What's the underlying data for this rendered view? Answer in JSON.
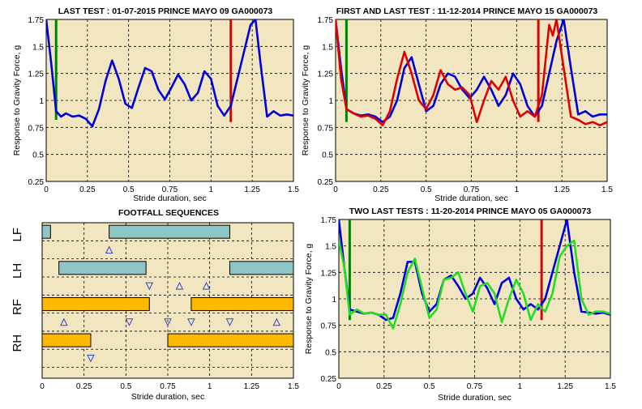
{
  "chart_data": [
    {
      "type": "line",
      "title": "LAST TEST : 01-07-2015 PRINCE MAYO 09 GA000073",
      "xlabel": "Stride duration, sec",
      "ylabel": "Response to Gravity Force, g",
      "xlim": [
        0,
        1.5
      ],
      "ylim": [
        0.25,
        1.75
      ],
      "xticks": [
        "0",
        "0.25",
        "0.5",
        "0.75",
        "1",
        "1.25",
        "1.5"
      ],
      "yticks": [
        "0.25",
        "0.5",
        "0.75",
        "1",
        "1.25",
        "1.5",
        "1.75"
      ],
      "grid": true,
      "markers": [
        {
          "x": 0.06,
          "y_from": 0.82,
          "y_to": 1.75,
          "color": "#008000"
        },
        {
          "x": 1.12,
          "y_from": 0.8,
          "y_to": 1.75,
          "color": "#e00000"
        }
      ],
      "series": [
        {
          "color": "#0000dd",
          "x": [
            0,
            0.03,
            0.06,
            0.09,
            0.12,
            0.16,
            0.2,
            0.24,
            0.28,
            0.32,
            0.36,
            0.4,
            0.44,
            0.48,
            0.52,
            0.56,
            0.6,
            0.64,
            0.68,
            0.72,
            0.76,
            0.8,
            0.84,
            0.88,
            0.92,
            0.96,
            1.0,
            1.04,
            1.08,
            1.12,
            1.16,
            1.2,
            1.24,
            1.27,
            1.3,
            1.34,
            1.38,
            1.42,
            1.46,
            1.5
          ],
          "y": [
            1.75,
            1.35,
            0.9,
            0.85,
            0.88,
            0.85,
            0.86,
            0.83,
            0.76,
            0.92,
            1.18,
            1.37,
            1.2,
            0.97,
            0.93,
            1.12,
            1.3,
            1.27,
            1.1,
            1.01,
            1.12,
            1.24,
            1.15,
            1.0,
            1.07,
            1.27,
            1.2,
            0.95,
            0.86,
            0.95,
            1.2,
            1.45,
            1.7,
            1.75,
            1.35,
            0.85,
            0.9,
            0.86,
            0.87,
            0.86
          ]
        }
      ]
    },
    {
      "type": "line",
      "title": "FIRST AND LAST TEST : 11-12-2014 PRINCE MAYO 15 GA000073",
      "xlabel": "Stride duration, sec",
      "ylabel": "Response to Gravity Force, g",
      "xlim": [
        0,
        1.5
      ],
      "ylim": [
        0.25,
        1.75
      ],
      "xticks": [
        "0",
        "0.25",
        "0.5",
        "0.75",
        "1",
        "1.25",
        "1.5"
      ],
      "yticks": [
        "0.25",
        "0.5",
        "0.75",
        "1",
        "1.25",
        "1.5",
        "1.75"
      ],
      "grid": true,
      "markers": [
        {
          "x": 0.06,
          "y_from": 0.8,
          "y_to": 1.75,
          "color": "#008000"
        },
        {
          "x": 1.12,
          "y_from": 0.8,
          "y_to": 1.75,
          "color": "#e00000"
        }
      ],
      "series": [
        {
          "color": "#0000dd",
          "x": [
            0,
            0.03,
            0.06,
            0.1,
            0.14,
            0.18,
            0.22,
            0.26,
            0.3,
            0.34,
            0.38,
            0.42,
            0.46,
            0.5,
            0.54,
            0.58,
            0.62,
            0.66,
            0.7,
            0.74,
            0.78,
            0.82,
            0.86,
            0.9,
            0.94,
            0.98,
            1.02,
            1.06,
            1.1,
            1.14,
            1.18,
            1.22,
            1.26,
            1.3,
            1.34,
            1.38,
            1.42,
            1.46,
            1.5
          ],
          "y": [
            1.75,
            1.3,
            0.92,
            0.88,
            0.86,
            0.87,
            0.85,
            0.8,
            0.85,
            1.0,
            1.3,
            1.4,
            1.15,
            0.9,
            0.95,
            1.15,
            1.25,
            1.22,
            1.1,
            1.02,
            1.1,
            1.22,
            1.1,
            0.95,
            1.05,
            1.25,
            1.15,
            0.95,
            0.85,
            0.95,
            1.25,
            1.55,
            1.75,
            1.3,
            0.87,
            0.9,
            0.85,
            0.87,
            0.87
          ]
        },
        {
          "color": "#e00000",
          "x": [
            0,
            0.03,
            0.06,
            0.1,
            0.14,
            0.18,
            0.22,
            0.26,
            0.3,
            0.34,
            0.38,
            0.42,
            0.46,
            0.5,
            0.54,
            0.58,
            0.62,
            0.66,
            0.7,
            0.74,
            0.78,
            0.82,
            0.86,
            0.9,
            0.94,
            0.98,
            1.02,
            1.06,
            1.1,
            1.14,
            1.18,
            1.2,
            1.22,
            1.26,
            1.3,
            1.34,
            1.38,
            1.42,
            1.46,
            1.5
          ],
          "y": [
            1.75,
            1.2,
            0.92,
            0.88,
            0.85,
            0.86,
            0.83,
            0.77,
            0.9,
            1.2,
            1.45,
            1.25,
            1.0,
            0.92,
            1.05,
            1.28,
            1.15,
            1.1,
            1.12,
            1.05,
            0.8,
            1.0,
            1.18,
            1.1,
            1.22,
            1.0,
            0.85,
            0.9,
            0.85,
            1.05,
            1.7,
            1.6,
            1.75,
            1.3,
            0.85,
            0.82,
            0.78,
            0.8,
            0.77,
            0.8
          ]
        }
      ]
    },
    {
      "type": "gantt",
      "title": "FOOTFALL SEQUENCES",
      "xlabel": "Stride duration, sec",
      "xlim": [
        0,
        1.5
      ],
      "xticks": [
        "0",
        "0.25",
        "0.5",
        "0.75",
        "1",
        "1.25",
        "1.5"
      ],
      "lanes": [
        "LF",
        "LH",
        "RF",
        "RH"
      ],
      "bars": [
        {
          "lane": "LF",
          "start": 0.0,
          "end": 0.05,
          "color": "#8ec6c6"
        },
        {
          "lane": "LF",
          "start": 0.4,
          "end": 1.12,
          "color": "#8ec6c6"
        },
        {
          "lane": "LH",
          "start": 0.1,
          "end": 0.62,
          "color": "#8ec6c6"
        },
        {
          "lane": "LH",
          "start": 1.12,
          "end": 1.5,
          "color": "#8ec6c6"
        },
        {
          "lane": "RF",
          "start": 0.0,
          "end": 0.64,
          "color": "#ffb800"
        },
        {
          "lane": "RF",
          "start": 0.89,
          "end": 1.5,
          "color": "#ffb800"
        },
        {
          "lane": "RH",
          "start": 0.0,
          "end": 0.29,
          "color": "#ffb800"
        },
        {
          "lane": "RH",
          "start": 0.75,
          "end": 1.5,
          "color": "#ffb800"
        }
      ],
      "event_markers": [
        {
          "x": 0.4,
          "lane": "LF",
          "dir": "up"
        },
        {
          "x": 0.64,
          "lane": "LH",
          "dir": "down"
        },
        {
          "x": 0.82,
          "lane": "LH",
          "dir": "up"
        },
        {
          "x": 0.98,
          "lane": "LH",
          "dir": "up"
        },
        {
          "x": 0.75,
          "lane": "RF",
          "dir": "down"
        },
        {
          "x": 0.13,
          "lane": "RF",
          "dir": "up"
        },
        {
          "x": 0.52,
          "lane": "RF",
          "dir": "down"
        },
        {
          "x": 0.89,
          "lane": "RF",
          "dir": "down"
        },
        {
          "x": 1.12,
          "lane": "RF",
          "dir": "down"
        },
        {
          "x": 1.4,
          "lane": "RF",
          "dir": "up"
        },
        {
          "x": 0.29,
          "lane": "RH",
          "dir": "down"
        }
      ]
    },
    {
      "type": "line",
      "title": "TWO LAST TESTS : 11-20-2014 PRINCE MAYO 05 GA000073",
      "xlabel": "Stride duration, sec",
      "ylabel": "Response to Gravity Force, g",
      "xlim": [
        0,
        1.5
      ],
      "ylim": [
        0.25,
        1.75
      ],
      "xticks": [
        "0",
        "0.25",
        "0.5",
        "0.75",
        "1",
        "1.25",
        "1.5"
      ],
      "yticks": [
        "0.25",
        "0.5",
        "0.75",
        "1",
        "1.25",
        "1.5",
        "1.75"
      ],
      "grid": true,
      "markers": [
        {
          "x": 0.06,
          "y_from": 0.8,
          "y_to": 1.75,
          "color": "#008000"
        },
        {
          "x": 1.12,
          "y_from": 0.8,
          "y_to": 1.75,
          "color": "#e00000"
        }
      ],
      "series": [
        {
          "color": "#0000dd",
          "x": [
            0,
            0.03,
            0.06,
            0.1,
            0.14,
            0.18,
            0.22,
            0.26,
            0.3,
            0.34,
            0.38,
            0.42,
            0.46,
            0.5,
            0.54,
            0.58,
            0.62,
            0.66,
            0.7,
            0.74,
            0.78,
            0.82,
            0.86,
            0.9,
            0.94,
            0.98,
            1.02,
            1.06,
            1.1,
            1.14,
            1.18,
            1.22,
            1.26,
            1.3,
            1.34,
            1.38,
            1.42,
            1.46,
            1.5
          ],
          "y": [
            1.75,
            1.3,
            0.9,
            0.88,
            0.86,
            0.87,
            0.85,
            0.8,
            0.82,
            1.05,
            1.35,
            1.35,
            1.05,
            0.88,
            0.95,
            1.18,
            1.22,
            1.12,
            1.0,
            1.05,
            1.2,
            1.1,
            0.95,
            1.15,
            1.2,
            1.0,
            0.9,
            0.95,
            0.9,
            1.0,
            1.25,
            1.5,
            1.75,
            1.25,
            0.88,
            0.87,
            0.86,
            0.87,
            0.85
          ]
        },
        {
          "color": "#22dd22",
          "x": [
            0,
            0.03,
            0.06,
            0.1,
            0.14,
            0.18,
            0.22,
            0.26,
            0.3,
            0.34,
            0.38,
            0.42,
            0.46,
            0.5,
            0.54,
            0.58,
            0.62,
            0.66,
            0.7,
            0.74,
            0.78,
            0.82,
            0.86,
            0.9,
            0.94,
            0.98,
            1.02,
            1.06,
            1.1,
            1.14,
            1.18,
            1.22,
            1.26,
            1.3,
            1.34,
            1.38,
            1.42,
            1.46,
            1.5
          ],
          "y": [
            1.55,
            1.3,
            0.85,
            0.9,
            0.86,
            0.87,
            0.85,
            0.85,
            0.72,
            0.95,
            1.25,
            1.38,
            1.1,
            0.82,
            0.9,
            1.18,
            1.2,
            1.25,
            1.05,
            0.88,
            1.12,
            1.15,
            1.05,
            0.78,
            1.0,
            1.18,
            1.05,
            0.8,
            0.95,
            0.88,
            1.05,
            1.4,
            1.5,
            1.55,
            1.0,
            0.85,
            0.88,
            0.88,
            0.86
          ]
        }
      ]
    }
  ]
}
